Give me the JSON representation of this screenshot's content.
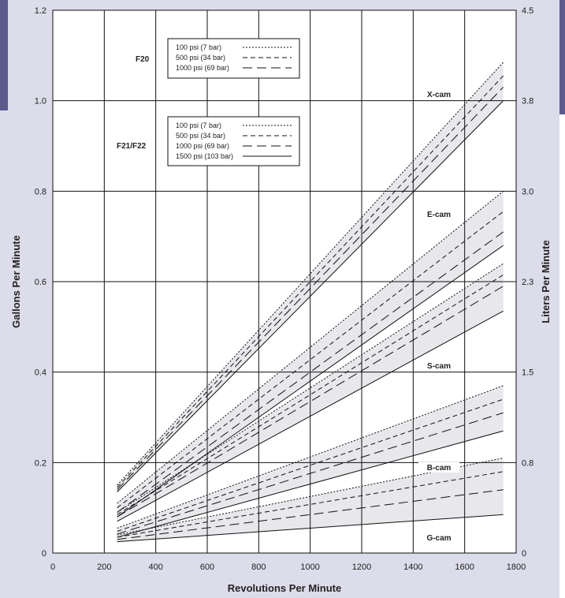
{
  "chart_data": {
    "type": "line",
    "title": "",
    "xlabel": "Revolutions Per Minute",
    "ylabel": "Gallons Per Minute",
    "y2label": "Liters Per Minute",
    "xlim": [
      0,
      1800
    ],
    "ylim": [
      0,
      1.2
    ],
    "x_ticks": [
      "0",
      "200",
      "400",
      "600",
      "800",
      "1000",
      "1200",
      "1400",
      "1600",
      "1800"
    ],
    "y_ticks": [
      "0",
      "0.2",
      "0.4",
      "0.6",
      "0.8",
      "1.0",
      "1.2"
    ],
    "y2_ticks": [
      {
        "label": "0",
        "at": 0
      },
      {
        "label": "0.8",
        "at": 0.2
      },
      {
        "label": "1.5",
        "at": 0.4
      },
      {
        "label": "2.3",
        "at": 0.6
      },
      {
        "label": "3.0",
        "at": 0.8
      },
      {
        "label": "3.8",
        "at": 1.0
      },
      {
        "label": "4.5",
        "at": 1.2
      }
    ],
    "grid": true,
    "colors": {
      "background": "#dcdcea",
      "plot": "#ffffff",
      "band": "#e8e8ec",
      "line": "#111111"
    },
    "legends": [
      {
        "title": "F20",
        "entries": [
          {
            "label": "100 psi (7 bar)",
            "style": "dotted"
          },
          {
            "label": "500 psi (34 bar)",
            "style": "dashed"
          },
          {
            "label": "1000 psi (69 bar)",
            "style": "longdash"
          }
        ]
      },
      {
        "title": "F21/F22",
        "entries": [
          {
            "label": "100 psi (7 bar)",
            "style": "dotted"
          },
          {
            "label": "500 psi (34 bar)",
            "style": "dashed"
          },
          {
            "label": "1000 psi (69 bar)",
            "style": "longdash"
          },
          {
            "label": "1500 psi (103 bar)",
            "style": "solid"
          }
        ]
      }
    ],
    "groups": [
      {
        "label": "X-cam",
        "label_at": [
          1500,
          1.01
        ],
        "x": [
          250,
          1750
        ],
        "lines": [
          {
            "style": "dotted",
            "y": [
              0.15,
              1.085
            ]
          },
          {
            "style": "dashed",
            "y": [
              0.145,
              1.055
            ]
          },
          {
            "style": "longdash",
            "y": [
              0.14,
              1.03
            ]
          },
          {
            "style": "solid",
            "y": [
              0.135,
              1.0
            ]
          }
        ]
      },
      {
        "label": "E-cam",
        "label_at": [
          1500,
          0.745
        ],
        "x": [
          250,
          1750
        ],
        "lines": [
          {
            "style": "dotted",
            "y": [
              0.11,
              0.8
            ]
          },
          {
            "style": "dashed",
            "y": [
              0.1,
              0.755
            ]
          },
          {
            "style": "longdash",
            "y": [
              0.09,
              0.71
            ]
          },
          {
            "style": "solid",
            "y": [
              0.08,
              0.68
            ]
          }
        ]
      },
      {
        "label": "S-cam",
        "label_at": [
          1500,
          0.41
        ],
        "x": [
          250,
          1750
        ],
        "lines": [
          {
            "style": "dotted",
            "y": [
              0.09,
              0.64
            ]
          },
          {
            "style": "dashed",
            "y": [
              0.085,
              0.615
            ]
          },
          {
            "style": "longdash",
            "y": [
              0.08,
              0.59
            ]
          },
          {
            "style": "solid",
            "y": [
              0.07,
              0.535
            ]
          }
        ]
      },
      {
        "label": "B-cam",
        "label_at": [
          1500,
          0.185
        ],
        "x": [
          250,
          1750
        ],
        "lines": [
          {
            "style": "dotted",
            "y": [
              0.055,
              0.37
            ]
          },
          {
            "style": "dashed",
            "y": [
              0.048,
              0.34
            ]
          },
          {
            "style": "longdash",
            "y": [
              0.042,
              0.31
            ]
          },
          {
            "style": "solid",
            "y": [
              0.035,
              0.27
            ]
          }
        ]
      },
      {
        "label": "G-cam",
        "label_at": [
          1500,
          0.03
        ],
        "x": [
          250,
          1750
        ],
        "lines": [
          {
            "style": "dotted",
            "y": [
              0.04,
              0.21
            ]
          },
          {
            "style": "dashed",
            "y": [
              0.035,
              0.18
            ]
          },
          {
            "style": "longdash",
            "y": [
              0.03,
              0.14
            ]
          },
          {
            "style": "solid",
            "y": [
              0.025,
              0.085
            ]
          }
        ]
      }
    ]
  }
}
